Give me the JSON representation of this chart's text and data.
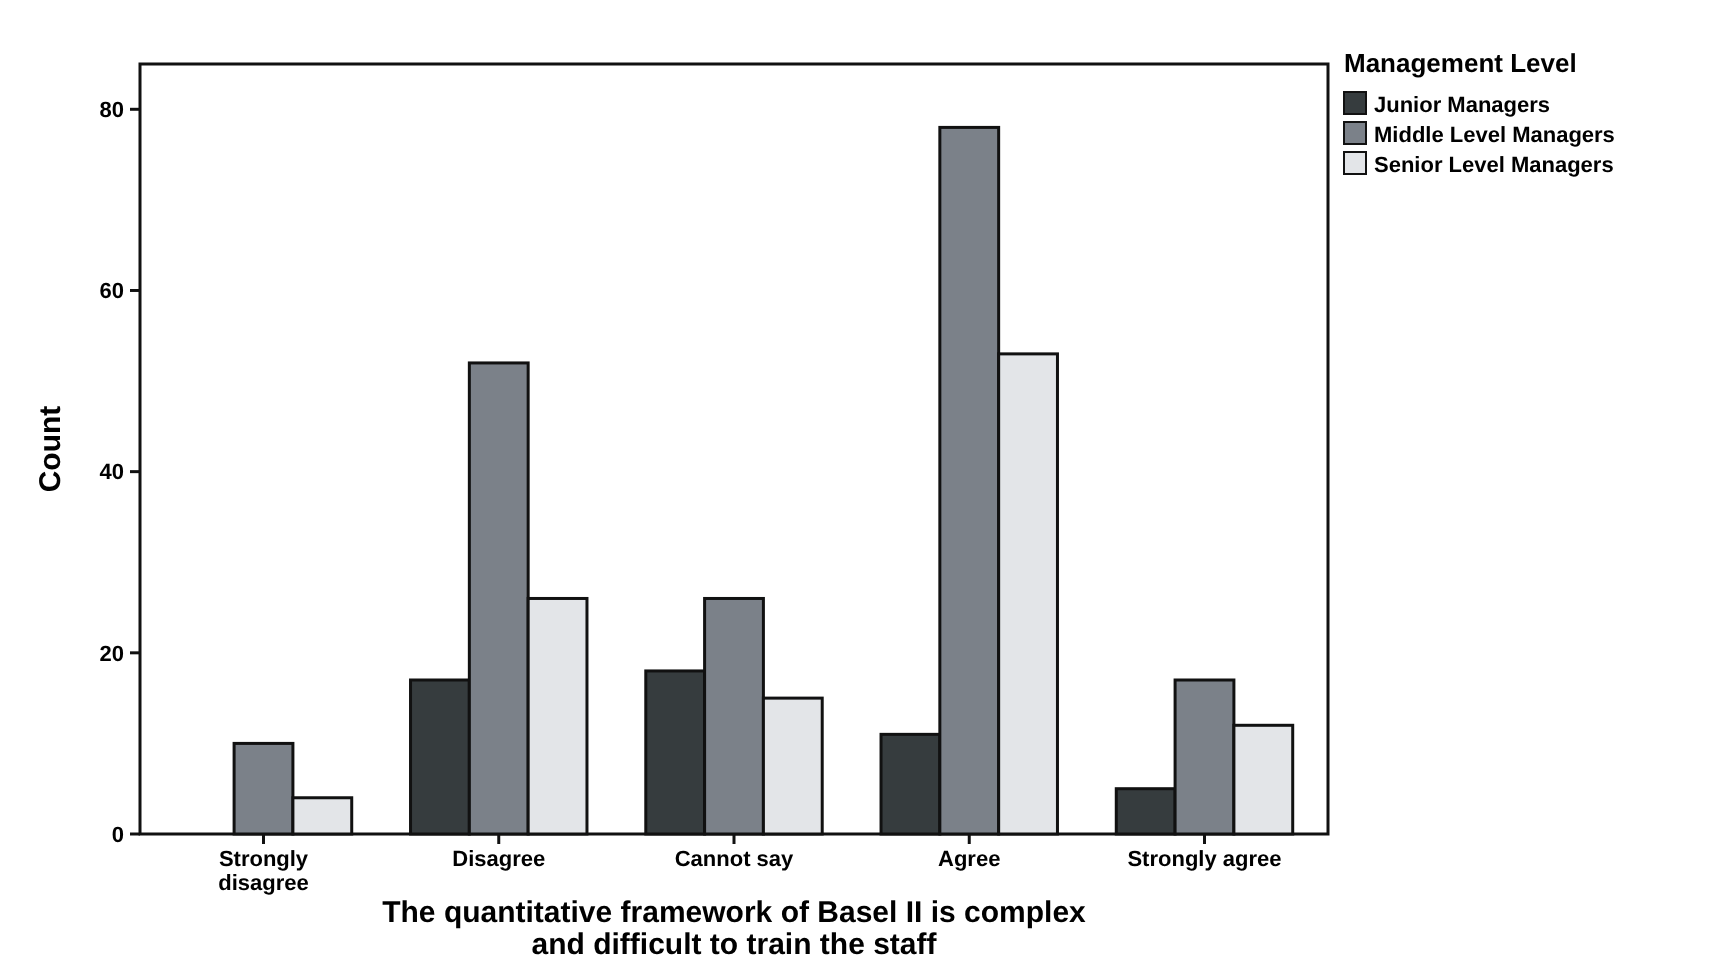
{
  "chart_data": {
    "type": "bar",
    "xlabel": "The quantitative framework of Basel II is complex\nand difficult to train the staff",
    "ylabel": "Count",
    "legend_title": "Management Level",
    "categories": [
      "Strongly disagree",
      "Disagree",
      "Cannot say",
      "Agree",
      "Strongly agree"
    ],
    "series": [
      {
        "name": "Junior Managers",
        "color": "#363c3e",
        "values": [
          null,
          17,
          18,
          11,
          5
        ]
      },
      {
        "name": "Middle Level Managers",
        "color": "#7b8189",
        "values": [
          10,
          52,
          26,
          78,
          17
        ]
      },
      {
        "name": "Senior Level Managers",
        "color": "#e3e5e8",
        "values": [
          4,
          26,
          15,
          53,
          12
        ]
      }
    ],
    "ylim": [
      0,
      85
    ],
    "yticks": [
      0,
      20,
      40,
      60,
      80
    ],
    "grid": false,
    "legend": "top right"
  }
}
